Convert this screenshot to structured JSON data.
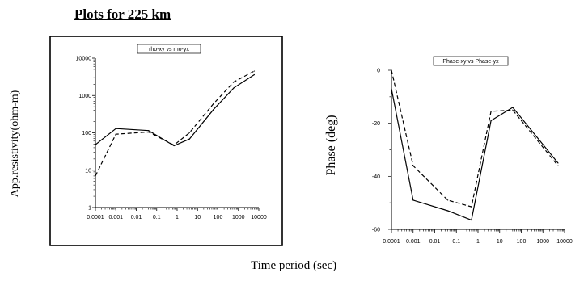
{
  "page_title": "Plots for 225 km",
  "shared_xlabel": "Time period (sec)",
  "chart_data": [
    {
      "type": "line",
      "title": "rho-xy vs rho-yx",
      "ylabel": "App.resistivity(ohm-m)",
      "xlabel": "Time period (sec)",
      "x_scale": "log",
      "y_scale": "log",
      "xlim": [
        0.0001,
        10000
      ],
      "ylim": [
        1,
        10000
      ],
      "x_ticks": [
        "0.0001",
        "0.001",
        "0.01",
        "0.1",
        "1",
        "10",
        "100",
        "1000",
        "10000"
      ],
      "y_ticks": [
        "1",
        "10",
        "100",
        "1000",
        "10000"
      ],
      "framed": true,
      "series": [
        {
          "style": "solid",
          "x": [
            0.0001,
            0.001,
            0.04,
            0.7,
            4,
            60,
            600,
            6000
          ],
          "y": [
            48,
            130,
            115,
            45,
            68,
            420,
            1600,
            3600
          ]
        },
        {
          "style": "dashed",
          "x": [
            0.0001,
            0.001,
            0.04,
            0.7,
            4,
            60,
            600,
            6000
          ],
          "y": [
            7,
            92,
            105,
            47,
            100,
            600,
            2300,
            4500
          ]
        }
      ]
    },
    {
      "type": "line",
      "title": "Phase-xy vs Phase-yx",
      "ylabel": "Phase (deg)",
      "xlabel": "Time period (sec)",
      "x_scale": "log",
      "y_scale": "linear",
      "xlim": [
        0.0001,
        10000
      ],
      "ylim": [
        -60,
        0
      ],
      "x_ticks": [
        "0.0001",
        "0.001",
        "0.01",
        "0.1",
        "1",
        "10",
        "100",
        "1000",
        "10000"
      ],
      "y_ticks": [
        "0",
        "-20",
        "-40",
        "-60"
      ],
      "framed": false,
      "series": [
        {
          "style": "solid",
          "x": [
            0.0001,
            0.001,
            0.04,
            0.5,
            4,
            40,
            5000
          ],
          "y": [
            -7,
            -49,
            -53,
            -56.5,
            -19,
            -14,
            -35
          ]
        },
        {
          "style": "dashed",
          "x": [
            0.0001,
            0.001,
            0.04,
            0.5,
            4,
            40,
            5000
          ],
          "y": [
            0,
            -36,
            -49,
            -51.5,
            -15.5,
            -15,
            -36
          ]
        }
      ]
    }
  ]
}
